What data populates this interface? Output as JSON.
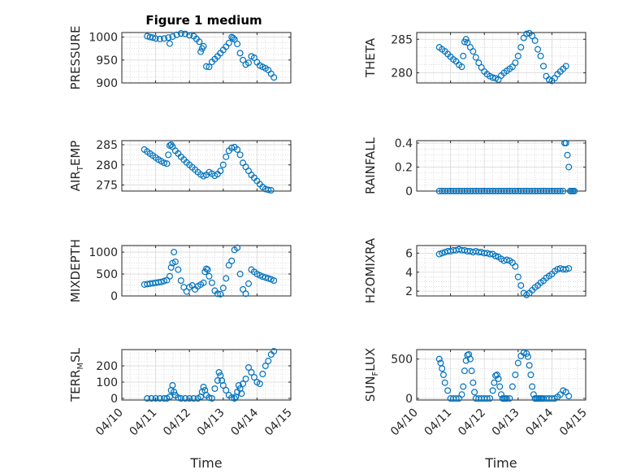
{
  "figure": {
    "title": "Figure 1 medium",
    "marker_color": "#0072BD"
  },
  "chart_data": [
    {
      "type": "scatter",
      "ylabel": "PRESSURE",
      "xlim": [
        "04/10",
        "04/15"
      ],
      "ylim": [
        900,
        1010
      ],
      "yticks": [
        900,
        950,
        1000
      ],
      "xticks": [
        "04/10",
        "04/11",
        "04/12",
        "04/13",
        "04/14",
        "04/15"
      ],
      "show_xticklabels": false,
      "xlabel": "",
      "x": [
        "04/10 18:00",
        "04/10 20:00",
        "04/10 22:00",
        "04/11 00:00",
        "04/11 03:00",
        "04/11 06:00",
        "04/11 09:00",
        "04/11 10:00",
        "04/11 12:00",
        "04/11 15:00",
        "04/11 18:00",
        "04/11 21:00",
        "04/12 00:00",
        "04/12 03:00",
        "04/12 05:00",
        "04/12 07:00",
        "04/12 08:00",
        "04/12 09:00",
        "04/12 10:00",
        "04/12 12:00",
        "04/12 14:00",
        "04/12 16:00",
        "04/12 18:00",
        "04/12 20:00",
        "04/12 22:00",
        "04/13 00:00",
        "04/13 02:00",
        "04/13 04:00",
        "04/13 06:00",
        "04/13 07:00",
        "04/13 08:00",
        "04/13 10:00",
        "04/13 12:00",
        "04/13 14:00",
        "04/13 16:00",
        "04/13 18:00",
        "04/13 20:00",
        "04/13 22:00",
        "04/14 00:00",
        "04/14 02:00",
        "04/14 04:00",
        "04/14 06:00",
        "04/14 08:00",
        "04/14 10:00",
        "04/14 12:00"
      ],
      "y": [
        1002,
        1000,
        999,
        997,
        996,
        997,
        999,
        986,
        1001,
        1005,
        1008,
        1007,
        1004,
        1002,
        996,
        990,
        968,
        975,
        980,
        936,
        935,
        946,
        952,
        958,
        965,
        972,
        979,
        987,
        1000,
        998,
        995,
        985,
        965,
        950,
        940,
        944,
        958,
        955,
        945,
        938,
        935,
        932,
        928,
        920,
        912
      ]
    },
    {
      "type": "scatter",
      "ylabel": "THETA",
      "xlim": [
        "04/10",
        "04/15"
      ],
      "ylim": [
        278.5,
        286
      ],
      "yticks": [
        280,
        285
      ],
      "xticks": [
        "04/10",
        "04/11",
        "04/12",
        "04/13",
        "04/14",
        "04/15"
      ],
      "show_xticklabels": false,
      "xlabel": "",
      "x": [
        "04/10 16:00",
        "04/10 18:00",
        "04/10 20:00",
        "04/10 22:00",
        "04/11 00:00",
        "04/11 02:00",
        "04/11 04:00",
        "04/11 06:00",
        "04/11 08:00",
        "04/11 09:00",
        "04/11 10:00",
        "04/11 11:00",
        "04/11 12:00",
        "04/11 14:00",
        "04/11 16:00",
        "04/11 18:00",
        "04/11 20:00",
        "04/11 22:00",
        "04/12 00:00",
        "04/12 02:00",
        "04/12 04:00",
        "04/12 06:00",
        "04/12 08:00",
        "04/12 10:00",
        "04/12 12:00",
        "04/12 14:00",
        "04/12 16:00",
        "04/12 18:00",
        "04/12 20:00",
        "04/12 22:00",
        "04/13 00:00",
        "04/13 02:00",
        "04/13 04:00",
        "04/13 06:00",
        "04/13 08:00",
        "04/13 10:00",
        "04/13 12:00",
        "04/13 14:00",
        "04/13 16:00",
        "04/13 18:00",
        "04/13 20:00",
        "04/13 22:00",
        "04/14 00:00",
        "04/14 02:00",
        "04/14 04:00",
        "04/14 06:00",
        "04/14 08:00",
        "04/14 10:00"
      ],
      "y": [
        283.8,
        283.5,
        283.2,
        282.8,
        282.4,
        282.0,
        281.7,
        281.2,
        280.9,
        282.5,
        284.6,
        285.0,
        284.5,
        283.8,
        283.2,
        282.3,
        281.5,
        280.8,
        280.2,
        279.8,
        279.5,
        279.3,
        279.2,
        279.0,
        279.6,
        280.0,
        280.3,
        280.6,
        280.9,
        281.5,
        282.5,
        283.8,
        285.2,
        285.8,
        285.9,
        285.5,
        284.8,
        283.5,
        282.5,
        281.0,
        279.5,
        279.0,
        278.8,
        279.2,
        279.8,
        280.2,
        280.6,
        281.0
      ]
    },
    {
      "type": "scatter",
      "ylabel": "AIR_TEMP",
      "xlim": [
        "04/10",
        "04/15"
      ],
      "ylim": [
        273.5,
        286
      ],
      "yticks": [
        275,
        280,
        285
      ],
      "xticks": [
        "04/10",
        "04/11",
        "04/12",
        "04/13",
        "04/14",
        "04/15"
      ],
      "show_xticklabels": false,
      "xlabel": "",
      "x": [
        "04/10 16:00",
        "04/10 18:00",
        "04/10 20:00",
        "04/10 22:00",
        "04/11 00:00",
        "04/11 02:00",
        "04/11 04:00",
        "04/11 06:00",
        "04/11 08:00",
        "04/11 09:00",
        "04/11 10:00",
        "04/11 11:00",
        "04/11 12:00",
        "04/11 14:00",
        "04/11 16:00",
        "04/11 18:00",
        "04/11 20:00",
        "04/11 22:00",
        "04/12 00:00",
        "04/12 02:00",
        "04/12 04:00",
        "04/12 06:00",
        "04/12 08:00",
        "04/12 10:00",
        "04/12 12:00",
        "04/12 14:00",
        "04/12 16:00",
        "04/12 18:00",
        "04/12 20:00",
        "04/12 22:00",
        "04/13 00:00",
        "04/13 02:00",
        "04/13 04:00",
        "04/13 06:00",
        "04/13 08:00",
        "04/13 10:00",
        "04/13 12:00",
        "04/13 14:00",
        "04/13 16:00",
        "04/13 18:00",
        "04/13 20:00",
        "04/13 22:00",
        "04/14 00:00",
        "04/14 02:00",
        "04/14 04:00",
        "04/14 06:00",
        "04/14 08:00",
        "04/14 10:00"
      ],
      "y": [
        283.8,
        283.3,
        282.8,
        282.3,
        281.8,
        281.3,
        280.9,
        280.5,
        280.3,
        282.5,
        284.8,
        285.0,
        284.5,
        283.5,
        282.8,
        282.0,
        281.3,
        280.6,
        280.0,
        279.4,
        278.8,
        278.2,
        277.6,
        277.2,
        277.5,
        278.2,
        277.8,
        277.3,
        277.7,
        278.5,
        280.0,
        282.0,
        283.5,
        284.2,
        284.4,
        283.8,
        282.5,
        280.5,
        279.5,
        278.5,
        277.5,
        276.8,
        276.0,
        275.2,
        274.5,
        274.0,
        273.8,
        273.7
      ]
    },
    {
      "type": "scatter",
      "ylabel": "RAINFALL",
      "xlim": [
        "04/10",
        "04/15"
      ],
      "ylim": [
        0,
        0.42
      ],
      "yticks": [
        0,
        0.2,
        0.4
      ],
      "xticks": [
        "04/10",
        "04/11",
        "04/12",
        "04/13",
        "04/14",
        "04/15"
      ],
      "show_xticklabels": false,
      "xlabel": "",
      "x": [
        "04/10 16:00",
        "04/10 18:00",
        "04/10 20:00",
        "04/10 22:00",
        "04/11 00:00",
        "04/11 02:00",
        "04/11 04:00",
        "04/11 06:00",
        "04/11 08:00",
        "04/11 10:00",
        "04/11 12:00",
        "04/11 14:00",
        "04/11 16:00",
        "04/11 18:00",
        "04/11 20:00",
        "04/11 22:00",
        "04/12 00:00",
        "04/12 02:00",
        "04/12 04:00",
        "04/12 06:00",
        "04/12 08:00",
        "04/12 10:00",
        "04/12 12:00",
        "04/12 14:00",
        "04/12 16:00",
        "04/12 18:00",
        "04/12 20:00",
        "04/12 22:00",
        "04/13 00:00",
        "04/13 02:00",
        "04/13 04:00",
        "04/13 06:00",
        "04/13 08:00",
        "04/13 10:00",
        "04/13 12:00",
        "04/13 14:00",
        "04/13 16:00",
        "04/13 18:00",
        "04/13 20:00",
        "04/13 22:00",
        "04/14 00:00",
        "04/14 02:00",
        "04/14 04:00",
        "04/14 06:00",
        "04/14 08:00",
        "04/14 09:00",
        "04/14 10:00",
        "04/14 11:00",
        "04/14 12:00",
        "04/14 13:00",
        "04/14 14:00",
        "04/14 15:00",
        "04/14 16:00"
      ],
      "y": [
        0,
        0,
        0,
        0,
        0,
        0,
        0,
        0,
        0,
        0,
        0,
        0,
        0,
        0,
        0,
        0,
        0,
        0,
        0,
        0,
        0,
        0,
        0,
        0,
        0,
        0,
        0,
        0,
        0,
        0,
        0,
        0,
        0,
        0,
        0,
        0,
        0,
        0,
        0,
        0,
        0,
        0,
        0,
        0,
        0,
        0.4,
        0.4,
        0.3,
        0.2,
        0,
        0,
        0,
        0
      ]
    },
    {
      "type": "scatter",
      "ylabel": "MIXDEPTH",
      "xlim": [
        "04/10",
        "04/15"
      ],
      "ylim": [
        0,
        1150
      ],
      "yticks": [
        0,
        500,
        1000
      ],
      "xticks": [
        "04/10",
        "04/11",
        "04/12",
        "04/13",
        "04/14",
        "04/15"
      ],
      "show_xticklabels": false,
      "xlabel": "",
      "x": [
        "04/10 16:00",
        "04/10 18:00",
        "04/10 20:00",
        "04/10 22:00",
        "04/11 00:00",
        "04/11 02:00",
        "04/11 04:00",
        "04/11 06:00",
        "04/11 08:00",
        "04/11 10:00",
        "04/11 11:00",
        "04/11 12:00",
        "04/11 13:00",
        "04/11 14:00",
        "04/11 16:00",
        "04/11 18:00",
        "04/11 20:00",
        "04/11 22:00",
        "04/12 00:00",
        "04/12 02:00",
        "04/12 04:00",
        "04/12 06:00",
        "04/12 08:00",
        "04/12 10:00",
        "04/12 11:00",
        "04/12 12:00",
        "04/12 13:00",
        "04/12 14:00",
        "04/12 16:00",
        "04/12 18:00",
        "04/12 20:00",
        "04/12 22:00",
        "04/13 00:00",
        "04/13 02:00",
        "04/13 04:00",
        "04/13 06:00",
        "04/13 08:00",
        "04/13 10:00",
        "04/13 12:00",
        "04/13 14:00",
        "04/13 16:00",
        "04/13 18:00",
        "04/13 20:00",
        "04/13 22:00",
        "04/14 00:00",
        "04/14 02:00",
        "04/14 04:00",
        "04/14 06:00",
        "04/14 08:00",
        "04/14 10:00",
        "04/14 12:00"
      ],
      "y": [
        260,
        270,
        280,
        290,
        300,
        310,
        320,
        340,
        360,
        450,
        650,
        750,
        1000,
        780,
        600,
        350,
        200,
        100,
        200,
        240,
        150,
        220,
        260,
        300,
        550,
        620,
        600,
        450,
        300,
        120,
        50,
        40,
        180,
        400,
        700,
        800,
        1050,
        1100,
        500,
        150,
        50,
        280,
        600,
        550,
        500,
        470,
        440,
        420,
        400,
        380,
        350
      ]
    },
    {
      "type": "scatter",
      "ylabel": "H2OMIXRA",
      "xlim": [
        "04/10",
        "04/15"
      ],
      "ylim": [
        1.5,
        6.8
      ],
      "yticks": [
        2,
        4,
        6
      ],
      "xticks": [
        "04/10",
        "04/11",
        "04/12",
        "04/13",
        "04/14",
        "04/15"
      ],
      "show_xticklabels": false,
      "xlabel": "",
      "x": [
        "04/10 16:00",
        "04/10 18:00",
        "04/10 20:00",
        "04/10 22:00",
        "04/11 00:00",
        "04/11 02:00",
        "04/11 04:00",
        "04/11 06:00",
        "04/11 08:00",
        "04/11 10:00",
        "04/11 12:00",
        "04/11 14:00",
        "04/11 16:00",
        "04/11 18:00",
        "04/11 20:00",
        "04/11 22:00",
        "04/12 00:00",
        "04/12 02:00",
        "04/12 04:00",
        "04/12 06:00",
        "04/12 08:00",
        "04/12 10:00",
        "04/12 12:00",
        "04/12 14:00",
        "04/12 16:00",
        "04/12 18:00",
        "04/12 20:00",
        "04/12 22:00",
        "04/13 00:00",
        "04/13 02:00",
        "04/13 04:00",
        "04/13 06:00",
        "04/13 08:00",
        "04/13 10:00",
        "04/13 12:00",
        "04/13 14:00",
        "04/13 16:00",
        "04/13 18:00",
        "04/13 20:00",
        "04/13 22:00",
        "04/14 00:00",
        "04/14 02:00",
        "04/14 04:00",
        "04/14 06:00",
        "04/14 08:00",
        "04/14 10:00",
        "04/14 12:00"
      ],
      "y": [
        5.9,
        6.0,
        6.1,
        6.2,
        6.2,
        6.3,
        6.3,
        6.4,
        6.3,
        6.3,
        6.2,
        6.2,
        6.1,
        6.2,
        6.1,
        6.1,
        6.0,
        6.0,
        5.9,
        5.9,
        5.7,
        5.6,
        5.4,
        5.2,
        5.3,
        5.2,
        5.0,
        4.6,
        3.5,
        2.6,
        1.8,
        1.6,
        1.8,
        2.1,
        2.4,
        2.6,
        2.9,
        3.1,
        3.4,
        3.6,
        3.8,
        4.1,
        4.3,
        4.4,
        4.3,
        4.3,
        4.4
      ]
    },
    {
      "type": "scatter",
      "ylabel": "TERR_MSL",
      "xlim": [
        "04/10",
        "04/15"
      ],
      "ylim": [
        -10,
        300
      ],
      "yticks": [
        0,
        100,
        200
      ],
      "xticks": [
        "04/10",
        "04/11",
        "04/12",
        "04/13",
        "04/14",
        "04/15"
      ],
      "show_xticklabels": true,
      "xlabel": "Time",
      "x": [
        "04/10 18:00",
        "04/10 21:00",
        "04/11 00:00",
        "04/11 03:00",
        "04/11 06:00",
        "04/11 08:00",
        "04/11 10:00",
        "04/11 11:00",
        "04/11 12:00",
        "04/11 13:00",
        "04/11 14:00",
        "04/11 16:00",
        "04/11 18:00",
        "04/11 21:00",
        "04/12 00:00",
        "04/12 03:00",
        "04/12 06:00",
        "04/12 08:00",
        "04/12 09:00",
        "04/12 10:00",
        "04/12 11:00",
        "04/12 12:00",
        "04/12 14:00",
        "04/12 16:00",
        "04/12 18:00",
        "04/12 20:00",
        "04/12 21:00",
        "04/12 22:00",
        "04/12 23:00",
        "04/13 00:00",
        "04/13 02:00",
        "04/13 04:00",
        "04/13 06:00",
        "04/13 08:00",
        "04/13 09:00",
        "04/13 10:00",
        "04/13 11:00",
        "04/13 12:00",
        "04/13 13:00",
        "04/13 14:00",
        "04/13 16:00",
        "04/13 18:00",
        "04/13 20:00",
        "04/13 22:00",
        "04/14 00:00",
        "04/14 02:00",
        "04/14 04:00",
        "04/14 06:00",
        "04/14 08:00",
        "04/14 10:00",
        "04/14 12:00"
      ],
      "y": [
        0,
        0,
        0,
        0,
        0,
        0,
        10,
        50,
        80,
        40,
        20,
        5,
        0,
        0,
        0,
        0,
        0,
        10,
        40,
        70,
        50,
        20,
        5,
        0,
        60,
        110,
        160,
        140,
        110,
        80,
        50,
        20,
        5,
        0,
        10,
        40,
        80,
        60,
        30,
        90,
        120,
        190,
        160,
        130,
        100,
        90,
        150,
        200,
        230,
        270,
        290
      ]
    },
    {
      "type": "scatter",
      "ylabel": "SUN_FLUX",
      "xlim": [
        "04/10",
        "04/15"
      ],
      "ylim": [
        -20,
        620
      ],
      "yticks": [
        0,
        500
      ],
      "xticks": [
        "04/10",
        "04/11",
        "04/12",
        "04/13",
        "04/14",
        "04/15"
      ],
      "show_xticklabels": true,
      "xlabel": "Time",
      "x": [
        "04/10 16:00",
        "04/10 17:00",
        "04/10 18:00",
        "04/10 19:00",
        "04/10 20:00",
        "04/10 22:00",
        "04/11 00:00",
        "04/11 02:00",
        "04/11 04:00",
        "04/11 06:00",
        "04/11 08:00",
        "04/11 09:00",
        "04/11 10:00",
        "04/11 11:00",
        "04/11 12:00",
        "04/11 13:00",
        "04/11 14:00",
        "04/11 15:00",
        "04/11 16:00",
        "04/11 17:00",
        "04/11 18:00",
        "04/11 20:00",
        "04/11 22:00",
        "04/12 00:00",
        "04/12 02:00",
        "04/12 04:00",
        "04/12 06:00",
        "04/12 07:00",
        "04/12 08:00",
        "04/12 09:00",
        "04/12 10:00",
        "04/12 11:00",
        "04/12 12:00",
        "04/12 13:00",
        "04/12 14:00",
        "04/12 15:00",
        "04/12 16:00",
        "04/12 18:00",
        "04/12 20:00",
        "04/12 22:00",
        "04/13 00:00",
        "04/13 02:00",
        "04/13 04:00",
        "04/13 06:00",
        "04/13 07:00",
        "04/13 08:00",
        "04/13 09:00",
        "04/13 10:00",
        "04/13 11:00",
        "04/13 12:00",
        "04/13 13:00",
        "04/13 14:00",
        "04/13 15:00",
        "04/13 16:00",
        "04/13 17:00",
        "04/13 18:00",
        "04/13 20:00",
        "04/13 22:00",
        "04/14 00:00",
        "04/14 02:00",
        "04/14 04:00",
        "04/14 06:00",
        "04/14 08:00",
        "04/14 10:00",
        "04/14 12:00"
      ],
      "y": [
        500,
        450,
        380,
        300,
        200,
        100,
        0,
        0,
        0,
        0,
        50,
        150,
        350,
        480,
        550,
        560,
        500,
        350,
        200,
        80,
        0,
        0,
        0,
        0,
        0,
        0,
        100,
        200,
        290,
        300,
        250,
        150,
        50,
        0,
        0,
        0,
        0,
        0,
        150,
        300,
        450,
        540,
        580,
        570,
        530,
        420,
        300,
        150,
        50,
        0,
        0,
        0,
        0,
        0,
        0,
        0,
        0,
        0,
        0,
        0,
        20,
        50,
        100,
        80,
        30
      ]
    }
  ]
}
